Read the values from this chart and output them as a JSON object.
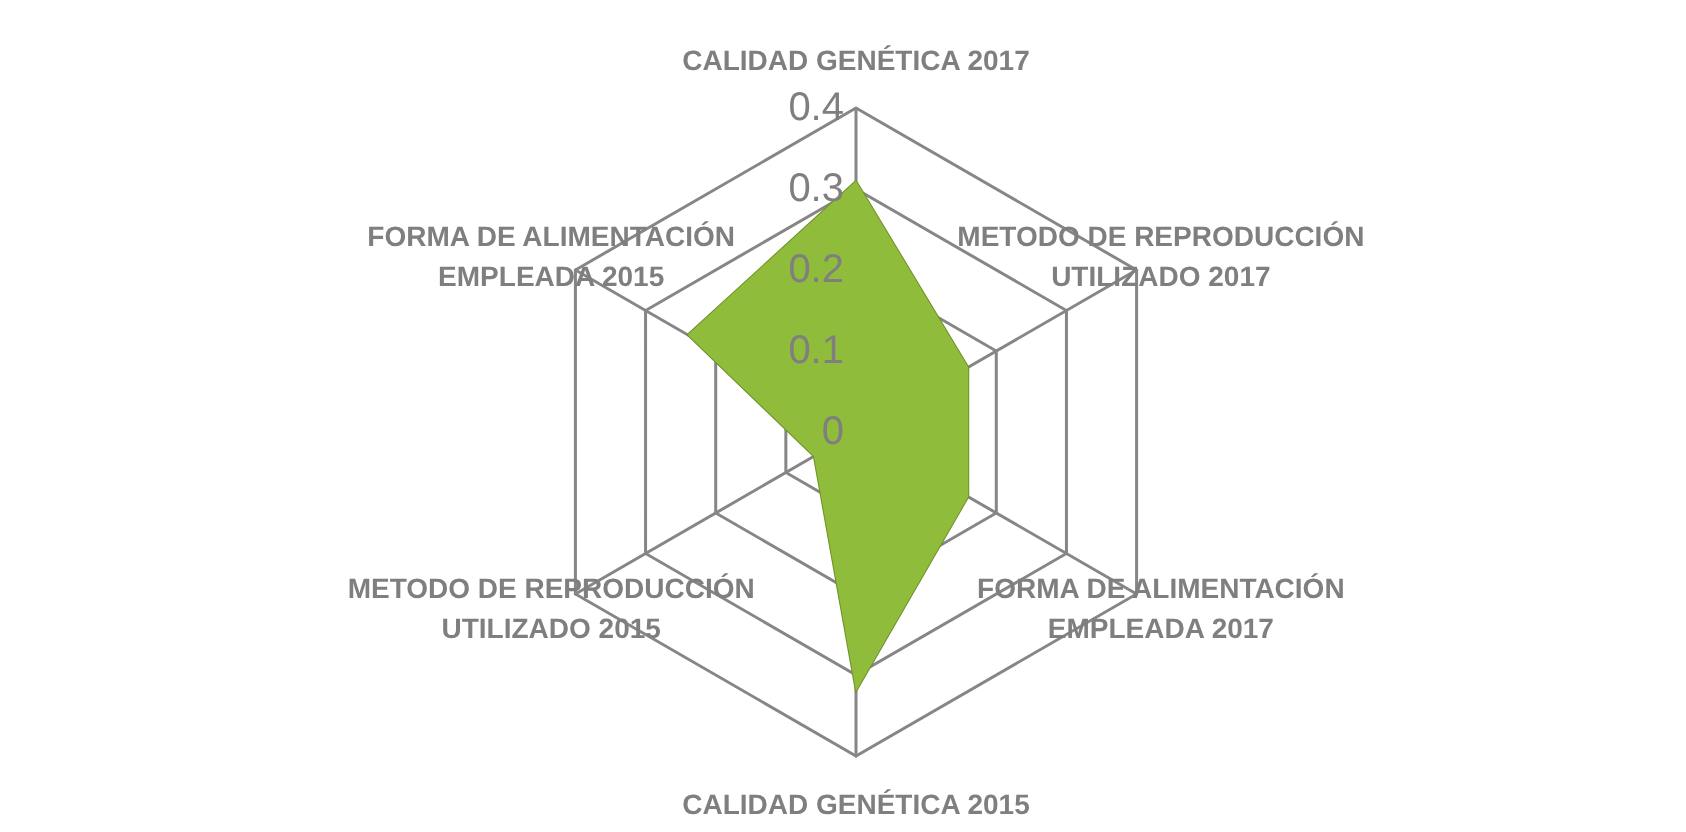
{
  "chart_data": {
    "type": "radar",
    "categories": [
      "CALIDAD GENÉTICA 2017",
      "METODO DE REPRODUCCIÓN UTILIZADO 2017",
      "FORMA DE ALIMENTACIÓN EMPLEADA 2017",
      "CALIDAD GENÉTICA 2015",
      "METODO DE REPRODUCCIÓN UTILIZADO 2015",
      "FORMA DE ALIMENTACIÓN EMPLEADA 2015"
    ],
    "series": [
      {
        "color": "#8fbc3a",
        "values": [
          0.31,
          0.16,
          0.16,
          0.32,
          0.06,
          0.24
        ]
      }
    ],
    "ylim": [
      0,
      0.4
    ],
    "yticks": [
      0,
      0.1,
      0.2,
      0.3,
      0.4
    ],
    "grid": true
  }
}
